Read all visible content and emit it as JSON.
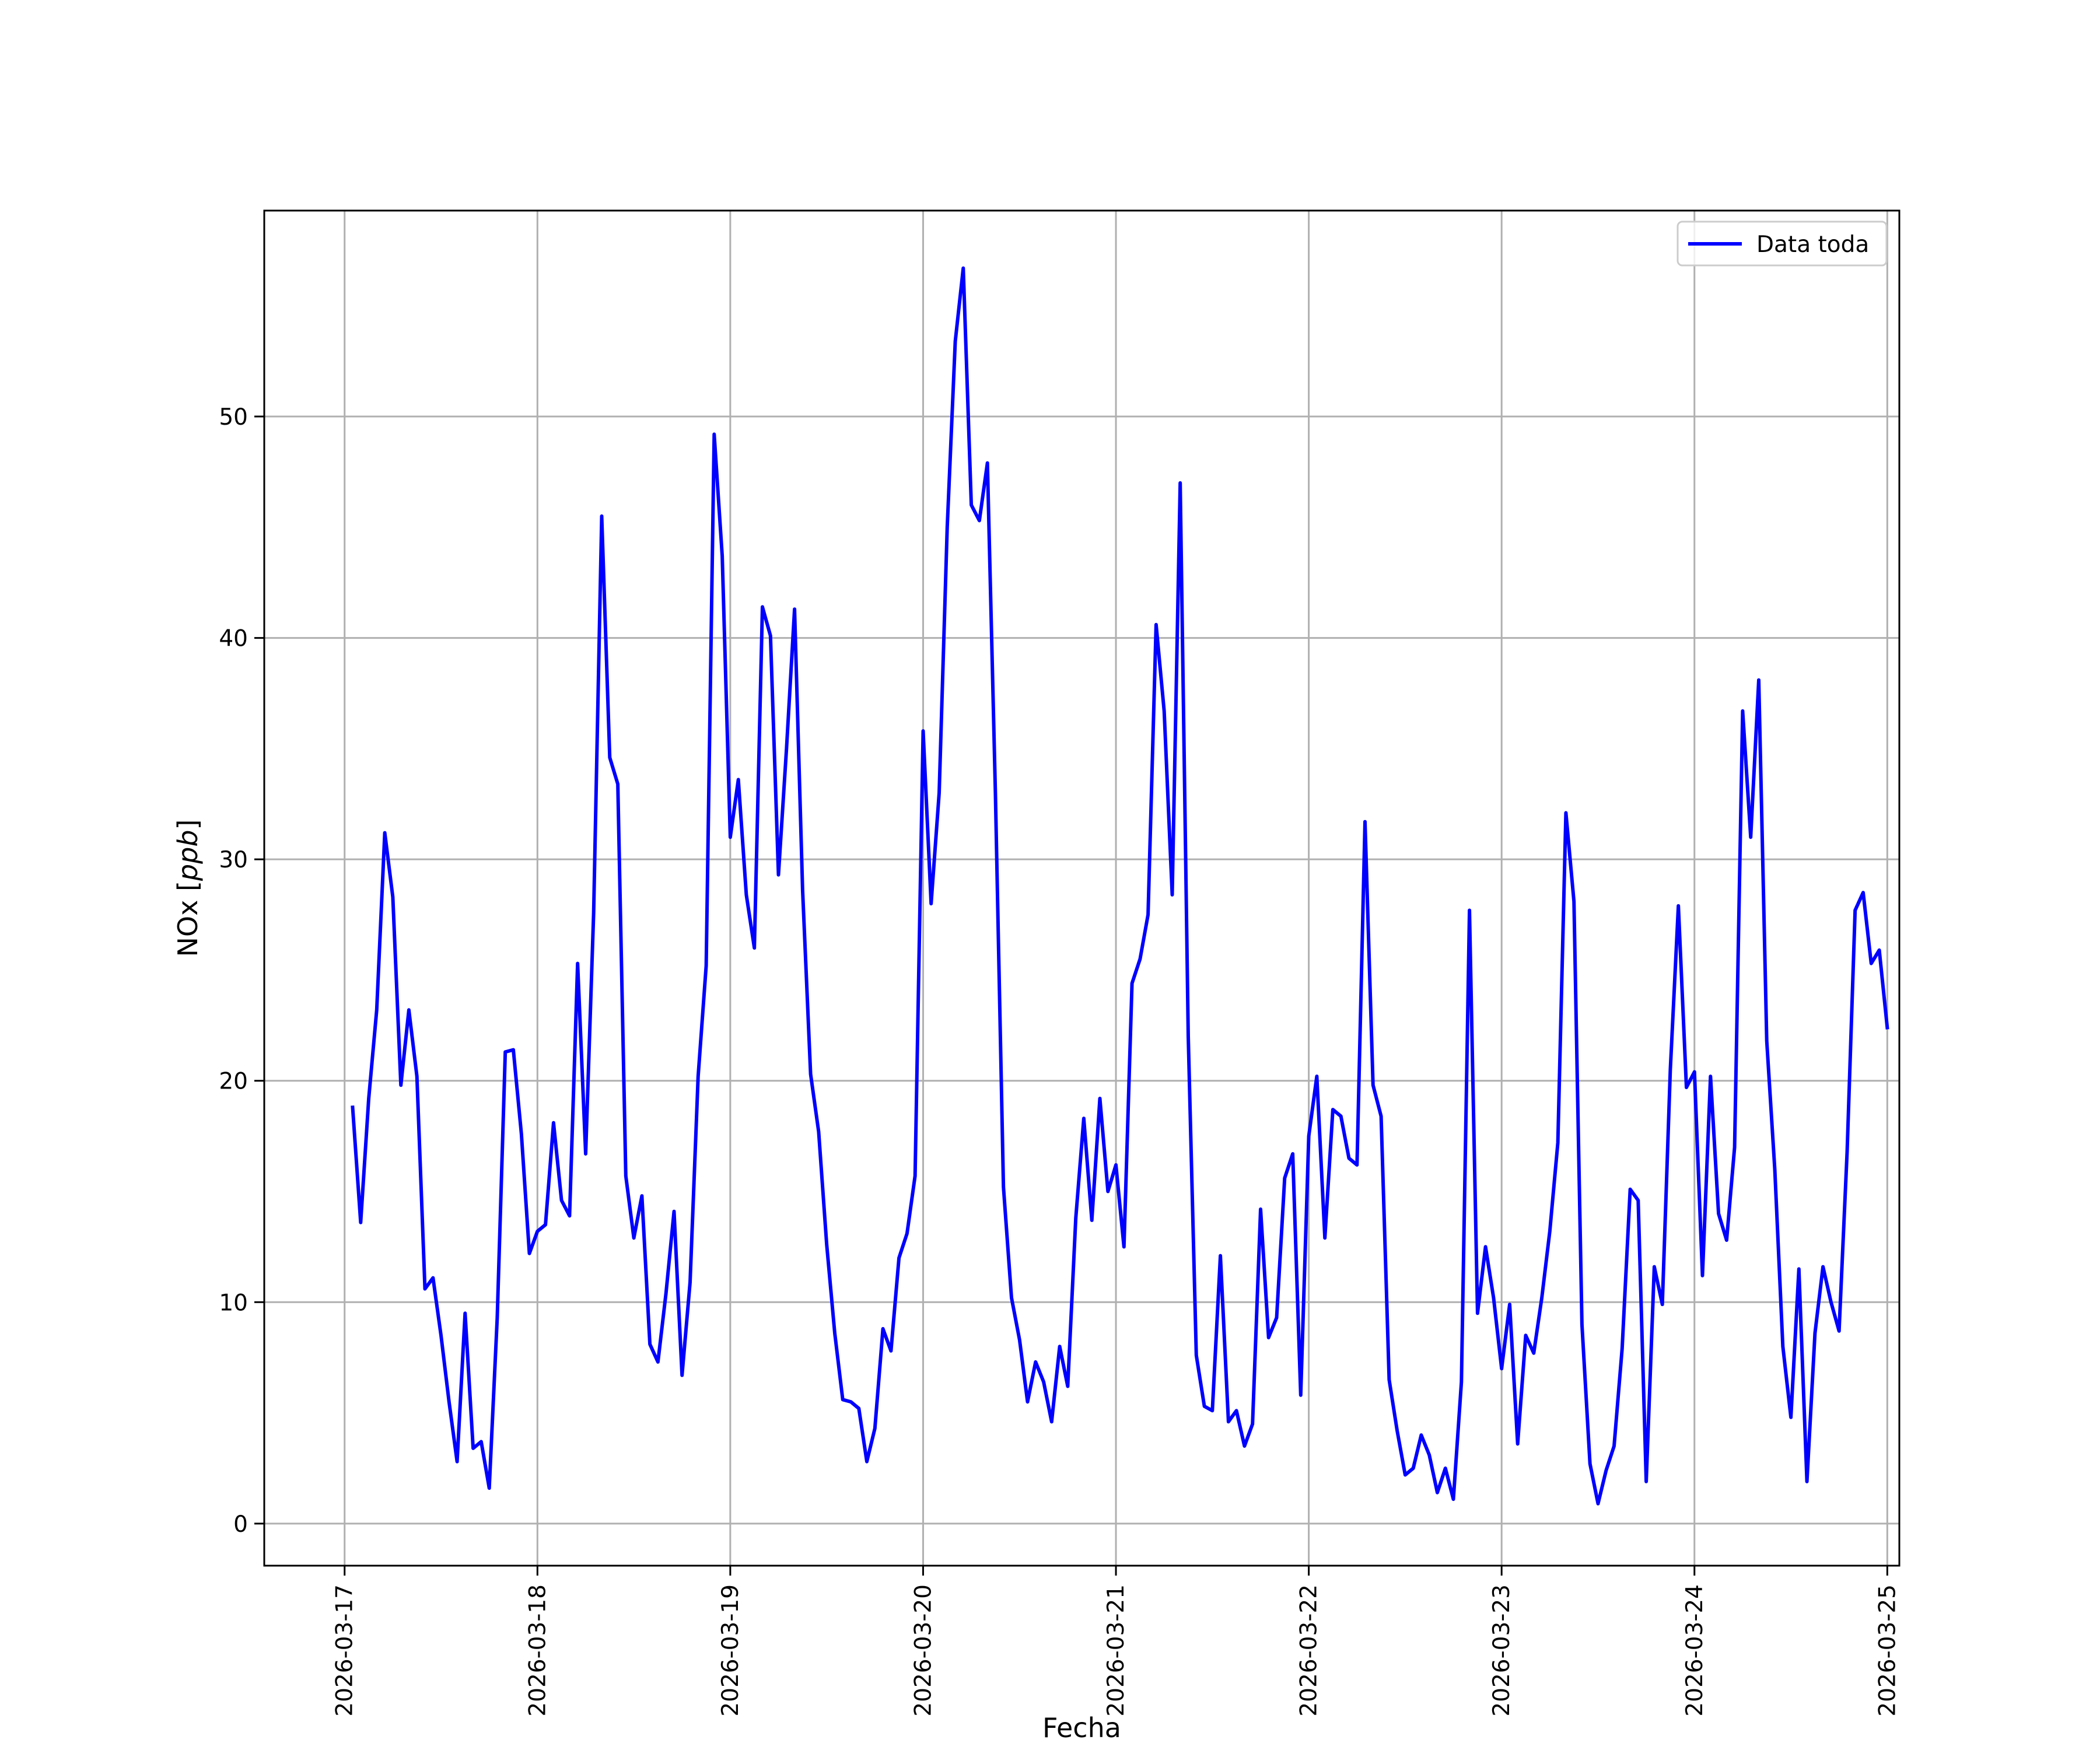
{
  "chart_data": {
    "type": "line",
    "xlabel": "Fecha",
    "ylabel": "NOx [ppb]",
    "ylabel_parts": {
      "text": "NOx [",
      "italic": "ppb",
      "close": "]"
    },
    "xlim": [
      "2026-03-16T14:00",
      "2026-03-25T01:30"
    ],
    "ylim": [
      -1.9,
      59.3
    ],
    "x_ticks": [
      "2026-03-17",
      "2026-03-18",
      "2026-03-19",
      "2026-03-20",
      "2026-03-21",
      "2026-03-22",
      "2026-03-23",
      "2026-03-24",
      "2026-03-25"
    ],
    "y_ticks": [
      0,
      10,
      20,
      30,
      40,
      50
    ],
    "y_tick_labels": [
      "0",
      "10",
      "20",
      "30",
      "40",
      "50"
    ],
    "grid": true,
    "legend": {
      "position": "top-right",
      "entries": [
        "Data toda"
      ]
    },
    "colors": {
      "line": "#0000ff",
      "grid": "#b0b0b0"
    },
    "series": [
      {
        "name": "Data toda",
        "start": "2026-03-17T01:00",
        "interval_hours": 1,
        "values": [
          18.8,
          13.6,
          19.2,
          23.2,
          31.2,
          28.3,
          19.8,
          23.2,
          20.2,
          10.6,
          11.1,
          8.5,
          5.5,
          2.8,
          9.5,
          3.4,
          3.7,
          1.6,
          9.3,
          21.3,
          21.4,
          17.6,
          12.2,
          13.2,
          13.5,
          18.1,
          14.6,
          13.9,
          25.3,
          16.7,
          27.6,
          45.5,
          34.6,
          33.4,
          15.7,
          12.9,
          14.8,
          8.1,
          7.3,
          10.4,
          14.1,
          6.7,
          10.9,
          20.2,
          25.2,
          49.2,
          43.7,
          31.0,
          33.6,
          28.4,
          26.0,
          41.4,
          40.1,
          29.3,
          35.0,
          41.3,
          28.6,
          20.3,
          17.7,
          12.6,
          8.6,
          5.6,
          5.5,
          5.2,
          2.8,
          4.3,
          8.8,
          7.8,
          12.0,
          13.1,
          15.7,
          35.8,
          28.0,
          33.0,
          45.0,
          53.4,
          56.7,
          46.0,
          45.3,
          47.9,
          33.0,
          15.2,
          10.2,
          8.3,
          5.5,
          7.3,
          6.4,
          4.6,
          8.0,
          6.2,
          13.8,
          18.3,
          13.7,
          19.2,
          15.0,
          16.2,
          12.5,
          24.4,
          25.5,
          27.5,
          40.6,
          36.7,
          28.4,
          47.0,
          22.0,
          7.6,
          5.3,
          5.1,
          12.1,
          4.6,
          5.1,
          3.5,
          4.5,
          14.2,
          8.4,
          9.3,
          15.6,
          16.7,
          5.8,
          17.5,
          20.2,
          12.9,
          18.7,
          18.4,
          16.5,
          16.2,
          31.7,
          19.8,
          18.4,
          6.5,
          4.2,
          2.2,
          2.5,
          4.0,
          3.1,
          1.4,
          2.5,
          1.1,
          6.4,
          27.7,
          9.5,
          12.5,
          10.2,
          7.0,
          9.9,
          3.6,
          8.5,
          7.7,
          10.2,
          13.2,
          17.2,
          32.1,
          28.1,
          9.0,
          2.7,
          0.9,
          2.4,
          3.5,
          7.9,
          15.1,
          14.6,
          1.9,
          11.6,
          9.9,
          20.5,
          27.9,
          19.7,
          20.4,
          11.2,
          20.2,
          14.0,
          12.8,
          17.0,
          36.7,
          31.0,
          38.1,
          21.8,
          16.0,
          8.0,
          4.8,
          11.5,
          1.9,
          8.6,
          11.6,
          10.0,
          8.7,
          16.8,
          27.7,
          28.5,
          25.3,
          25.9,
          22.4
        ]
      }
    ]
  }
}
